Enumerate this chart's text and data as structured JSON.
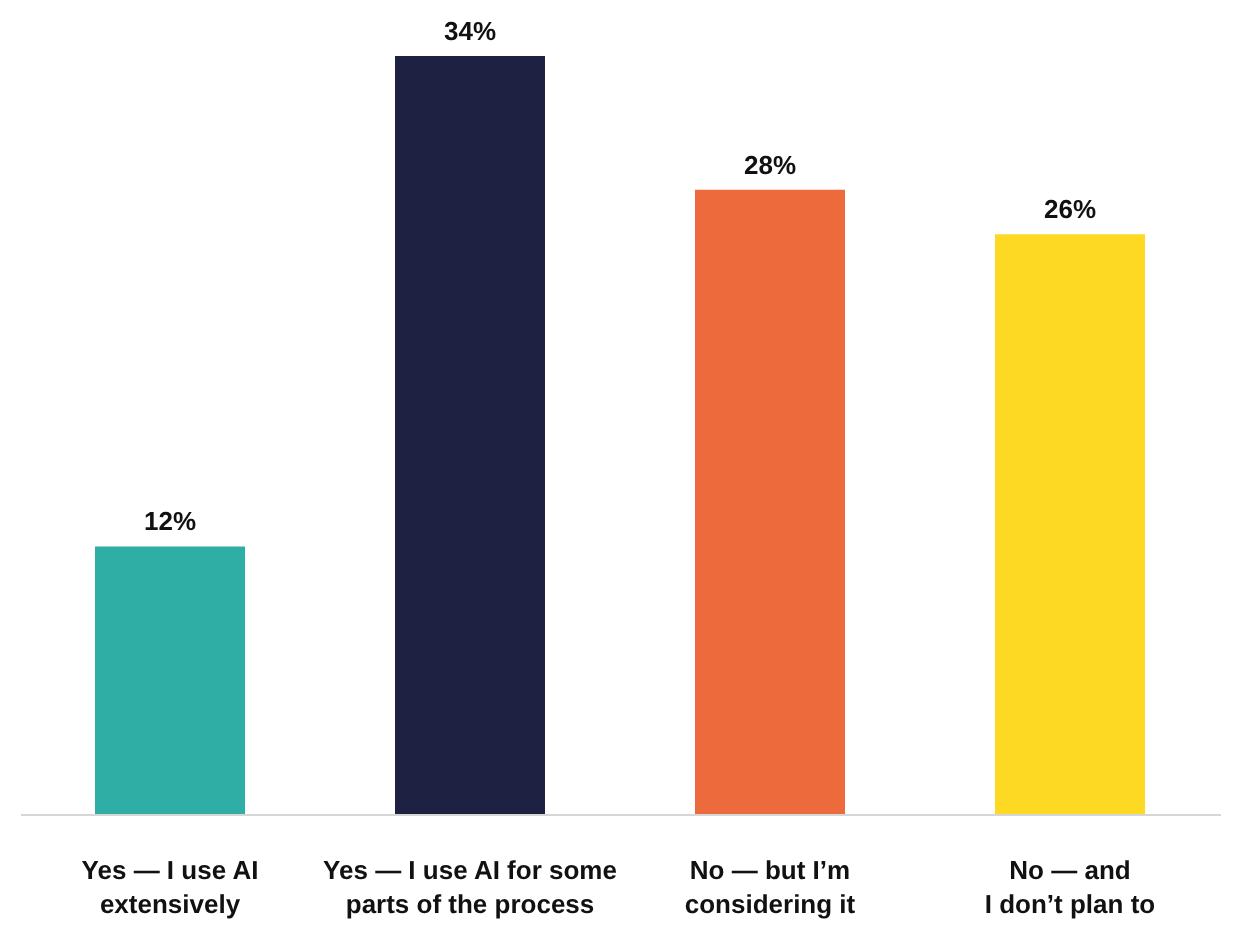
{
  "chart_data": {
    "type": "bar",
    "categories": [
      "Yes — I use AI\nextensively",
      "Yes — I use AI for some\nparts of the process",
      "No — but I’m\nconsidering it",
      "No — and\nI don’t plan to"
    ],
    "values": [
      12,
      34,
      28,
      26
    ],
    "colors": [
      "#2eaea4",
      "#1e2142",
      "#ec6a3b",
      "#fdd923"
    ],
    "value_labels": [
      "12%",
      "34%",
      "28%",
      "26%"
    ],
    "grid": false
  }
}
